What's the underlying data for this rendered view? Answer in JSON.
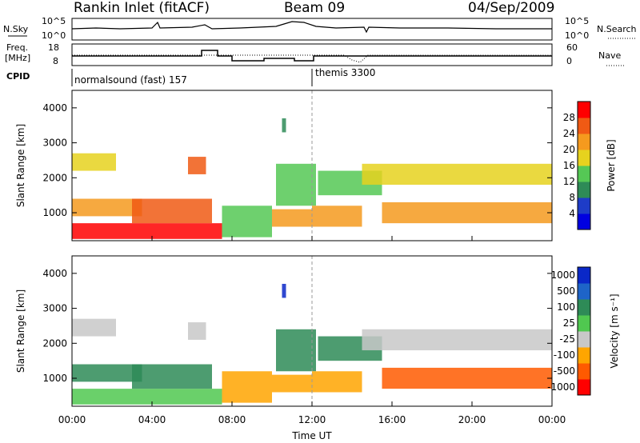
{
  "header": {
    "station": "Rankin Inlet (fitACF)",
    "beam": "Beam 09",
    "date": "04/Sep/2009"
  },
  "nsky_panel": {
    "left_label": "N.Sky",
    "right_label": "N.Search",
    "left_ticks": [
      "10^5",
      "10^0"
    ],
    "right_ticks": [
      "10^5",
      "10^0"
    ]
  },
  "freq_panel": {
    "left_label_1": "Freq.",
    "left_label_2": "[MHz]",
    "right_label": "Nave",
    "left_ticks": [
      "18",
      "8"
    ],
    "right_ticks": [
      "60",
      "0"
    ]
  },
  "cpid": {
    "label": "CPID",
    "modes": [
      "normalsound (fast) 157",
      "themis 3300"
    ]
  },
  "colors": {
    "power": [
      "#0000e0",
      "#1e3cc8",
      "#2e8b57",
      "#55c855",
      "#e6d21e",
      "#f59a1e",
      "#f05a14",
      "#ff0000"
    ],
    "velocity": [
      "#ff0000",
      "#ff5a00",
      "#ffa500",
      "#c8c8c8",
      "#50c850",
      "#2e8b57",
      "#1e64c8",
      "#0a28c8"
    ]
  },
  "chart_data": [
    {
      "type": "heatmap",
      "name": "power",
      "ylabel": "Slant Range [km]",
      "yticks": [
        "1000",
        "2000",
        "3000",
        "4000"
      ],
      "ylim": [
        200,
        4500
      ],
      "xlim": [
        "00:00",
        "24:00"
      ],
      "colorbar_label": "Power [dB]",
      "colorbar_ticks": [
        "4",
        "8",
        "12",
        "16",
        "20",
        "24",
        "28"
      ],
      "colorbar_range": [
        0,
        32
      ],
      "regions": [
        {
          "t0": 0.0,
          "t1": 2.2,
          "r0": 2200,
          "r1": 2700,
          "level": 4
        },
        {
          "t0": 0.0,
          "t1": 3.5,
          "r0": 900,
          "r1": 1400,
          "level": 5
        },
        {
          "t0": 0.0,
          "t1": 7.5,
          "r0": 250,
          "r1": 700,
          "level": 7
        },
        {
          "t0": 3.0,
          "t1": 7.0,
          "r0": 700,
          "r1": 1400,
          "level": 6
        },
        {
          "t0": 5.8,
          "t1": 6.7,
          "r0": 2100,
          "r1": 2600,
          "level": 6
        },
        {
          "t0": 7.5,
          "t1": 10.0,
          "r0": 300,
          "r1": 1200,
          "level": 3
        },
        {
          "t0": 10.0,
          "t1": 12.0,
          "r0": 600,
          "r1": 1100,
          "level": 5
        },
        {
          "t0": 10.2,
          "t1": 12.2,
          "r0": 1200,
          "r1": 2400,
          "level": 3
        },
        {
          "t0": 10.5,
          "t1": 10.7,
          "r0": 3300,
          "r1": 3700,
          "level": 2
        },
        {
          "t0": 12.0,
          "t1": 14.5,
          "r0": 600,
          "r1": 1200,
          "level": 5
        },
        {
          "t0": 12.3,
          "t1": 15.5,
          "r0": 1500,
          "r1": 2200,
          "level": 3
        },
        {
          "t0": 14.5,
          "t1": 24.0,
          "r0": 1800,
          "r1": 2400,
          "level": 4
        },
        {
          "t0": 15.5,
          "t1": 24.0,
          "r0": 700,
          "r1": 1300,
          "level": 5
        }
      ]
    },
    {
      "type": "heatmap",
      "name": "velocity",
      "ylabel": "Slant Range [km]",
      "yticks": [
        "1000",
        "2000",
        "3000",
        "4000"
      ],
      "ylim": [
        200,
        4500
      ],
      "xlim": [
        "00:00",
        "24:00"
      ],
      "xticks": [
        "00:00",
        "04:00",
        "08:00",
        "12:00",
        "16:00",
        "20:00",
        "00:00"
      ],
      "xlabel": "Time UT",
      "colorbar_label": "Velocity [m s⁻¹]",
      "colorbar_ticks": [
        "1000",
        "500",
        "100",
        "25",
        "-25",
        "-100",
        "-500",
        "-1000"
      ],
      "regions": [
        {
          "t0": 0.0,
          "t1": 2.2,
          "r0": 2200,
          "r1": 2700,
          "level": 3
        },
        {
          "t0": 0.0,
          "t1": 3.5,
          "r0": 900,
          "r1": 1400,
          "level": 5
        },
        {
          "t0": 0.0,
          "t1": 7.5,
          "r0": 250,
          "r1": 700,
          "level": 4
        },
        {
          "t0": 3.0,
          "t1": 7.0,
          "r0": 700,
          "r1": 1400,
          "level": 5
        },
        {
          "t0": 5.8,
          "t1": 6.7,
          "r0": 2100,
          "r1": 2600,
          "level": 3
        },
        {
          "t0": 7.5,
          "t1": 10.0,
          "r0": 300,
          "r1": 1200,
          "level": 2
        },
        {
          "t0": 10.0,
          "t1": 12.0,
          "r0": 600,
          "r1": 1100,
          "level": 2
        },
        {
          "t0": 10.2,
          "t1": 12.2,
          "r0": 1200,
          "r1": 2400,
          "level": 5
        },
        {
          "t0": 10.5,
          "t1": 10.7,
          "r0": 3300,
          "r1": 3700,
          "level": 7
        },
        {
          "t0": 12.0,
          "t1": 14.5,
          "r0": 600,
          "r1": 1200,
          "level": 2
        },
        {
          "t0": 12.3,
          "t1": 15.5,
          "r0": 1500,
          "r1": 2200,
          "level": 5
        },
        {
          "t0": 14.5,
          "t1": 24.0,
          "r0": 1800,
          "r1": 2400,
          "level": 3
        },
        {
          "t0": 15.5,
          "t1": 24.0,
          "r0": 700,
          "r1": 1300,
          "level": 1
        }
      ]
    }
  ]
}
